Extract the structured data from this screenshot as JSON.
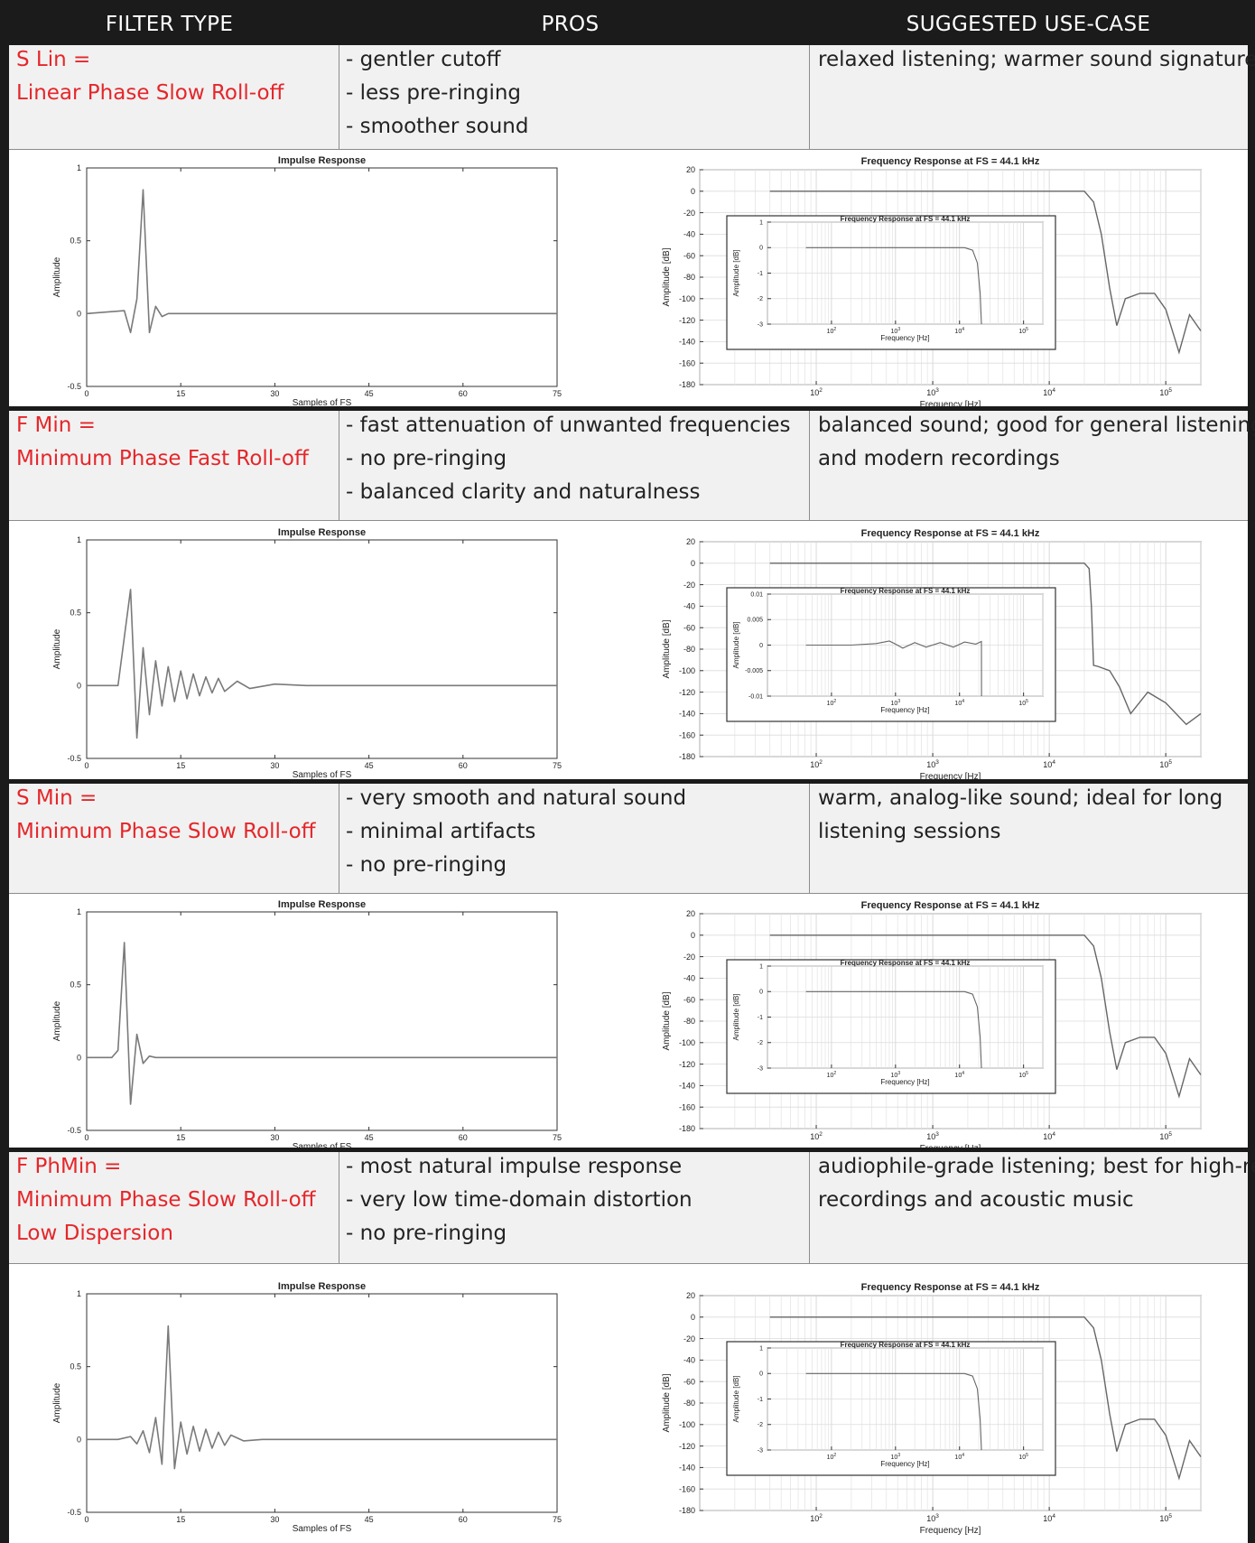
{
  "headers": [
    "FILTER TYPE",
    "PROS",
    "SUGGESTED USE-CASE"
  ],
  "filters": [
    {
      "type_lines": [
        "S Lin =",
        "Linear Phase Slow Roll-off"
      ],
      "pros": [
        "- gentler cutoff",
        "- less pre-ringing",
        "- smoother sound"
      ],
      "use_case": [
        "relaxed listening; warmer sound signature"
      ]
    },
    {
      "type_lines": [
        "F Min =",
        "Minimum Phase Fast Roll-off"
      ],
      "pros": [
        "- fast attenuation of unwanted frequencies",
        "- no pre-ringing",
        "- balanced clarity and naturalness"
      ],
      "use_case": [
        "balanced sound; good for general listening",
        "and modern recordings"
      ]
    },
    {
      "type_lines": [
        "S Min =",
        "Minimum Phase Slow Roll-off"
      ],
      "pros": [
        "- very smooth and natural sound",
        "- minimal artifacts",
        "- no pre-ringing"
      ],
      "use_case": [
        "warm, analog-like sound; ideal for long",
        "listening sessions"
      ]
    },
    {
      "type_lines": [
        "F PhMin =",
        "Minimum Phase Slow Roll-off",
        "Low Dispersion"
      ],
      "pros": [
        "- most natural impulse response",
        "- very low time-domain distortion",
        "- no pre-ringing"
      ],
      "use_case": [
        "audiophile-grade listening; best for high-res",
        "recordings and acoustic music"
      ]
    }
  ],
  "chart_data": [
    {
      "type": "line",
      "filter": "S Lin",
      "title": "Impulse Response",
      "xlabel": "Samples of FS",
      "ylabel": "Amplitude",
      "xticks": [
        "0",
        "15",
        "30",
        "45",
        "60",
        "75"
      ],
      "yticks": [
        "-0.5",
        "0",
        "0.5",
        "1"
      ],
      "xlim": [
        0,
        75
      ],
      "ylim": [
        -0.5,
        1
      ],
      "grid": false,
      "series": [
        {
          "x": [
            0,
            6,
            7,
            8,
            9,
            10,
            11,
            12,
            13,
            75
          ],
          "y": [
            0,
            0.02,
            -0.13,
            0.1,
            0.85,
            -0.13,
            0.05,
            -0.02,
            0,
            0
          ]
        }
      ]
    },
    {
      "type": "line",
      "filter": "S Lin",
      "title": "Frequency Response at FS = 44.1 kHz",
      "xlabel": "Frequency [Hz]",
      "ylabel": "Amplitude [dB]",
      "xscale": "log",
      "xlim": [
        10,
        200000
      ],
      "ylim": [
        -180,
        20
      ],
      "grid": true,
      "xticks": [
        "10^2",
        "10^3",
        "10^4",
        "10^5"
      ],
      "yticks": [
        "-180",
        "-160",
        "-140",
        "-120",
        "-100",
        "-80",
        "-60",
        "-40",
        "-20",
        "0",
        "20"
      ],
      "series": [
        {
          "x": [
            40,
            20000,
            24000,
            28000,
            33000,
            38000,
            45000,
            60000,
            80000,
            100000,
            130000,
            160000,
            200000
          ],
          "y": [
            0,
            0,
            -10,
            -40,
            -90,
            -125,
            -100,
            -95,
            -95,
            -110,
            -150,
            -115,
            -130
          ]
        }
      ],
      "inset": {
        "title": "Frequency Response at FS = 44.1 kHz",
        "xlabel": "Frequency [Hz]",
        "ylabel": "Amplitude [dB]",
        "xscale": "log",
        "xlim": [
          10,
          200000
        ],
        "ylim": [
          -3,
          1
        ],
        "xticks": [
          "10^2",
          "10^3",
          "10^4",
          "10^5"
        ],
        "yticks": [
          "-3",
          "-2",
          "-1",
          "0",
          "1"
        ],
        "series": [
          {
            "x": [
              40,
              12000,
              16000,
              19000,
              21000,
              22000
            ],
            "y": [
              0,
              0,
              -0.1,
              -0.6,
              -1.8,
              -3
            ]
          }
        ]
      }
    },
    {
      "type": "line",
      "filter": "F Min",
      "title": "Impulse Response",
      "xlabel": "Samples of FS",
      "ylabel": "Amplitude",
      "xticks": [
        "0",
        "15",
        "30",
        "45",
        "60",
        "75"
      ],
      "yticks": [
        "-0.5",
        "0",
        "0.5",
        "1"
      ],
      "xlim": [
        0,
        75
      ],
      "ylim": [
        -0.5,
        1
      ],
      "grid": false,
      "series": [
        {
          "x": [
            0,
            5,
            7,
            8,
            9,
            10,
            11,
            12,
            13,
            14,
            15,
            16,
            17,
            18,
            19,
            20,
            21,
            22,
            24,
            26,
            30,
            35,
            75
          ],
          "y": [
            0,
            0,
            0.66,
            -0.36,
            0.26,
            -0.2,
            0.17,
            -0.14,
            0.13,
            -0.11,
            0.1,
            -0.09,
            0.08,
            -0.07,
            0.06,
            -0.05,
            0.05,
            -0.04,
            0.03,
            -0.02,
            0.01,
            0,
            0
          ]
        }
      ]
    },
    {
      "type": "line",
      "filter": "F Min",
      "title": "Frequency Response at FS = 44.1 kHz",
      "xlabel": "Frequency [Hz]",
      "ylabel": "Amplitude [dB]",
      "xscale": "log",
      "xlim": [
        10,
        200000
      ],
      "ylim": [
        -180,
        20
      ],
      "grid": true,
      "xticks": [
        "10^2",
        "10^3",
        "10^4",
        "10^5"
      ],
      "yticks": [
        "-180",
        "-160",
        "-140",
        "-120",
        "-100",
        "-80",
        "-60",
        "-40",
        "-20",
        "0",
        "20"
      ],
      "series": [
        {
          "x": [
            40,
            20000,
            22000,
            23000,
            24000,
            26000,
            33000,
            40000,
            50000,
            70000,
            100000,
            150000,
            200000
          ],
          "y": [
            0,
            0,
            -5,
            -40,
            -95,
            -96,
            -100,
            -115,
            -140,
            -120,
            -130,
            -150,
            -140
          ]
        }
      ],
      "inset": {
        "title": "Frequency Response at FS = 44.1 kHz",
        "xlabel": "Frequency [Hz]",
        "ylabel": "Amplitude [dB]",
        "xscale": "log",
        "xlim": [
          10,
          200000
        ],
        "ylim": [
          -0.01,
          0.01
        ],
        "xticks": [
          "10^2",
          "10^3",
          "10^4",
          "10^5"
        ],
        "yticks": [
          "-0.01",
          "-0.005",
          "0",
          "0.005",
          "0.01"
        ],
        "series": [
          {
            "x": [
              40,
              200,
              500,
              800,
              1000,
              1300,
              2000,
              3000,
              5000,
              8000,
              12000,
              18000,
              22000,
              22050
            ],
            "y": [
              0,
              0,
              0.0003,
              0.0008,
              0.0002,
              -0.0006,
              0.0005,
              -0.0004,
              0.0005,
              -0.0004,
              0.0006,
              0.0002,
              0.0007,
              -0.01
            ]
          }
        ]
      }
    },
    {
      "type": "line",
      "filter": "S Min",
      "title": "Impulse Response",
      "xlabel": "Samples of FS",
      "ylabel": "Amplitude",
      "xticks": [
        "0",
        "15",
        "30",
        "45",
        "60",
        "75"
      ],
      "yticks": [
        "-0.5",
        "0",
        "0.5",
        "1"
      ],
      "xlim": [
        0,
        75
      ],
      "ylim": [
        -0.5,
        1
      ],
      "grid": false,
      "series": [
        {
          "x": [
            0,
            4,
            5,
            6,
            7,
            8,
            9,
            10,
            11,
            75
          ],
          "y": [
            0,
            0,
            0.05,
            0.79,
            -0.32,
            0.16,
            -0.04,
            0.01,
            0,
            0
          ]
        }
      ]
    },
    {
      "type": "line",
      "filter": "S Min",
      "title": "Frequency Response at FS = 44.1 kHz",
      "xlabel": "Frequency [Hz]",
      "ylabel": "Amplitude [dB]",
      "xscale": "log",
      "xlim": [
        10,
        200000
      ],
      "ylim": [
        -180,
        20
      ],
      "grid": true,
      "xticks": [
        "10^2",
        "10^3",
        "10^4",
        "10^5"
      ],
      "yticks": [
        "-180",
        "-160",
        "-140",
        "-120",
        "-100",
        "-80",
        "-60",
        "-40",
        "-20",
        "0",
        "20"
      ],
      "series": [
        {
          "x": [
            40,
            20000,
            24000,
            28000,
            33000,
            38000,
            45000,
            60000,
            80000,
            100000,
            130000,
            160000,
            200000
          ],
          "y": [
            0,
            0,
            -10,
            -40,
            -90,
            -125,
            -100,
            -95,
            -95,
            -110,
            -150,
            -115,
            -130
          ]
        }
      ],
      "inset": {
        "title": "Frequency Response at FS = 44.1 kHz",
        "xlabel": "Frequency [Hz]",
        "ylabel": "Amplitude [dB]",
        "xscale": "log",
        "xlim": [
          10,
          200000
        ],
        "ylim": [
          -3,
          1
        ],
        "xticks": [
          "10^2",
          "10^3",
          "10^4",
          "10^5"
        ],
        "yticks": [
          "-3",
          "-2",
          "-1",
          "0",
          "1"
        ],
        "series": [
          {
            "x": [
              40,
              12000,
              16000,
              19000,
              21000,
              22000
            ],
            "y": [
              0,
              0,
              -0.1,
              -0.6,
              -1.8,
              -3
            ]
          }
        ]
      }
    },
    {
      "type": "line",
      "filter": "F PhMin",
      "title": "Impulse Response",
      "xlabel": "Samples of FS",
      "ylabel": "Amplitude",
      "xticks": [
        "0",
        "15",
        "30",
        "45",
        "60",
        "75"
      ],
      "yticks": [
        "-0.5",
        "0",
        "0.5",
        "1"
      ],
      "xlim": [
        0,
        75
      ],
      "ylim": [
        -0.5,
        1
      ],
      "grid": false,
      "series": [
        {
          "x": [
            0,
            5,
            7,
            8,
            9,
            10,
            11,
            12,
            13,
            14,
            15,
            16,
            17,
            18,
            19,
            20,
            21,
            22,
            23,
            25,
            28,
            75
          ],
          "y": [
            0,
            0,
            0.02,
            -0.03,
            0.06,
            -0.09,
            0.15,
            -0.17,
            0.78,
            -0.2,
            0.12,
            -0.1,
            0.09,
            -0.08,
            0.07,
            -0.06,
            0.05,
            -0.04,
            0.03,
            -0.01,
            0,
            0
          ]
        }
      ]
    },
    {
      "type": "line",
      "filter": "F PhMin",
      "title": "Frequency Response at FS = 44.1 kHz",
      "xlabel": "Frequency [Hz]",
      "ylabel": "Amplitude [dB]",
      "xscale": "log",
      "xlim": [
        10,
        200000
      ],
      "ylim": [
        -180,
        20
      ],
      "grid": true,
      "xticks": [
        "10^2",
        "10^3",
        "10^4",
        "10^5"
      ],
      "yticks": [
        "-180",
        "-160",
        "-140",
        "-120",
        "-100",
        "-80",
        "-60",
        "-40",
        "-20",
        "0",
        "20"
      ],
      "series": [
        {
          "x": [
            40,
            20000,
            24000,
            28000,
            33000,
            38000,
            45000,
            60000,
            80000,
            100000,
            130000,
            160000,
            200000
          ],
          "y": [
            0,
            0,
            -10,
            -40,
            -90,
            -125,
            -100,
            -95,
            -95,
            -110,
            -150,
            -115,
            -130
          ]
        }
      ],
      "inset": {
        "title": "Frequency Response at FS = 44.1 kHz",
        "xlabel": "Frequency [Hz]",
        "ylabel": "Amplitude [dB]",
        "xscale": "log",
        "xlim": [
          10,
          200000
        ],
        "ylim": [
          -3,
          1
        ],
        "xticks": [
          "10^2",
          "10^3",
          "10^4",
          "10^5"
        ],
        "yticks": [
          "-3",
          "-2",
          "-1",
          "0",
          "1"
        ],
        "series": [
          {
            "x": [
              40,
              12000,
              16000,
              19000,
              21000,
              22000
            ],
            "y": [
              0,
              0,
              -0.1,
              -0.6,
              -1.8,
              -3
            ]
          }
        ]
      }
    }
  ]
}
